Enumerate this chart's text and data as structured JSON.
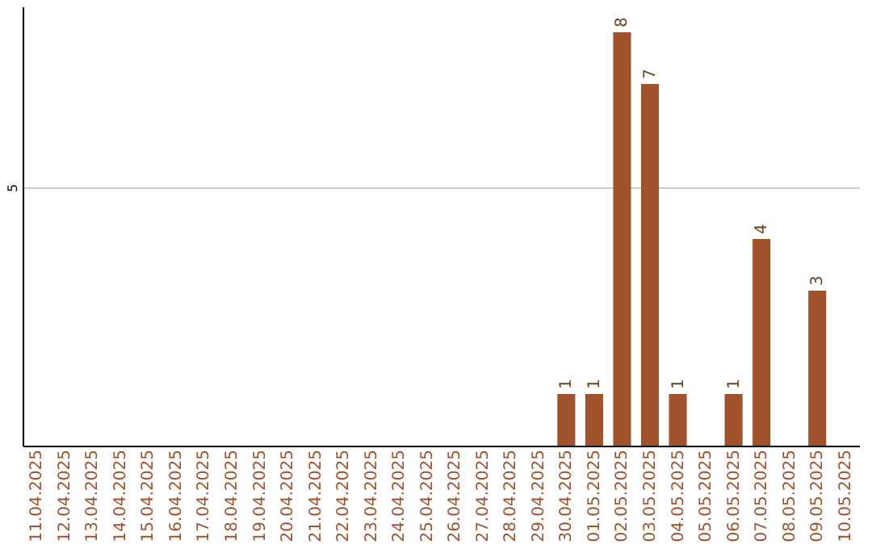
{
  "chart_data": {
    "type": "bar",
    "categories": [
      "11.04.2025",
      "12.04.2025",
      "13.04.2025",
      "14.04.2025",
      "15.04.2025",
      "16.04.2025",
      "17.04.2025",
      "18.04.2025",
      "19.04.2025",
      "20.04.2025",
      "21.04.2025",
      "22.04.2025",
      "23.04.2025",
      "24.04.2025",
      "25.04.2025",
      "26.04.2025",
      "27.04.2025",
      "28.04.2025",
      "29.04.2025",
      "30.04.2025",
      "01.05.2025",
      "02.05.2025",
      "03.05.2025",
      "04.05.2025",
      "05.05.2025",
      "06.05.2025",
      "07.05.2025",
      "08.05.2025",
      "09.05.2025",
      "10.05.2025"
    ],
    "values": [
      null,
      null,
      null,
      null,
      null,
      null,
      null,
      null,
      null,
      null,
      null,
      null,
      null,
      null,
      null,
      null,
      null,
      null,
      null,
      1,
      1,
      8,
      7,
      1,
      null,
      1,
      4,
      null,
      3,
      null
    ],
    "color": "#a0522d",
    "ylim": [
      0,
      8.5
    ],
    "yticks": [
      5
    ],
    "grid": "y",
    "data_labels": true
  }
}
